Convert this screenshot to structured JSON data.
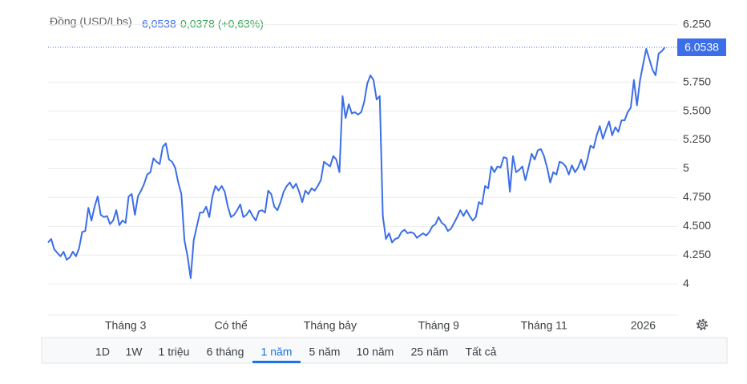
{
  "header": {
    "price": "6,0538",
    "change": "0,0378 (+0,63%)"
  },
  "chart_data": {
    "type": "line",
    "series": [
      {
        "name": "Đồng (USD/Lbs)",
        "color": "#3b6ee8",
        "values": [
          4.36,
          4.39,
          4.3,
          4.27,
          4.24,
          4.28,
          4.21,
          4.23,
          4.28,
          4.24,
          4.31,
          4.45,
          4.46,
          4.66,
          4.55,
          4.67,
          4.76,
          4.6,
          4.58,
          4.59,
          4.52,
          4.55,
          4.64,
          4.51,
          4.55,
          4.53,
          4.76,
          4.78,
          4.6,
          4.76,
          4.81,
          4.87,
          4.95,
          4.97,
          5.09,
          5.06,
          5.04,
          5.19,
          5.22,
          5.08,
          5.06,
          5.01,
          4.88,
          4.78,
          4.38,
          4.24,
          4.05,
          4.38,
          4.5,
          4.62,
          4.62,
          4.67,
          4.58,
          4.76,
          4.85,
          4.81,
          4.85,
          4.8,
          4.67,
          4.58,
          4.6,
          4.64,
          4.69,
          4.58,
          4.6,
          4.64,
          4.59,
          4.55,
          4.63,
          4.64,
          4.62,
          4.81,
          4.78,
          4.67,
          4.64,
          4.71,
          4.8,
          4.85,
          4.88,
          4.83,
          4.87,
          4.8,
          4.71,
          4.81,
          4.78,
          4.83,
          4.81,
          4.85,
          4.9,
          5.06,
          5.04,
          5.02,
          5.11,
          5.08,
          4.97,
          5.63,
          5.44,
          5.56,
          5.48,
          5.49,
          5.47,
          5.49,
          5.58,
          5.74,
          5.81,
          5.77,
          5.6,
          5.63,
          4.59,
          4.39,
          4.44,
          4.36,
          4.39,
          4.4,
          4.45,
          4.47,
          4.44,
          4.45,
          4.44,
          4.4,
          4.42,
          4.44,
          4.42,
          4.45,
          4.5,
          4.52,
          4.58,
          4.53,
          4.51,
          4.46,
          4.48,
          4.53,
          4.58,
          4.64,
          4.59,
          4.64,
          4.59,
          4.55,
          4.58,
          4.71,
          4.69,
          4.85,
          4.83,
          5.02,
          4.97,
          5.02,
          5.01,
          5.1,
          5.09,
          4.8,
          5.11,
          4.97,
          4.99,
          5.02,
          4.9,
          5.01,
          5.13,
          5.08,
          5.16,
          5.17,
          5.11,
          5.01,
          4.88,
          4.97,
          4.95,
          5.06,
          5.05,
          5.02,
          4.95,
          5.03,
          4.97,
          5.01,
          5.08,
          4.99,
          5.08,
          5.2,
          5.18,
          5.29,
          5.37,
          5.26,
          5.34,
          5.41,
          5.29,
          5.36,
          5.32,
          5.42,
          5.42,
          5.49,
          5.53,
          5.77,
          5.55,
          5.77,
          5.91,
          6.04,
          5.95,
          5.86,
          5.81,
          6.0,
          6.02,
          6.0538
        ]
      }
    ],
    "xlim": [
      0,
      203
    ],
    "xticks": [
      {
        "value": 25,
        "label": "Tháng 3"
      },
      {
        "value": 59,
        "label": "Có thể"
      },
      {
        "value": 91,
        "label": "Tháng bảy"
      },
      {
        "value": 126,
        "label": "Tháng 9"
      },
      {
        "value": 160,
        "label": "Tháng 11"
      },
      {
        "value": 192,
        "label": "2026"
      }
    ],
    "ylim": [
      3.73,
      6.36
    ],
    "yticks": [
      {
        "value": 6.25,
        "label": "6.250"
      },
      {
        "value": 5.75,
        "label": "5.750"
      },
      {
        "value": 5.5,
        "label": "5.500"
      },
      {
        "value": 5.25,
        "label": "5.250"
      },
      5,
      {
        "value": 4.75,
        "label": "4.750"
      },
      {
        "value": 4.5,
        "label": "4.500"
      },
      {
        "value": 4.25,
        "label": "4.250"
      },
      4
    ],
    "grid": true
  },
  "range_buttons": [
    "1D",
    "1W",
    "1 triệu",
    "6 tháng",
    "1 năm",
    "5 năm",
    "10 năm",
    "25 năm",
    "Tất cả"
  ],
  "selected_range": 4
}
